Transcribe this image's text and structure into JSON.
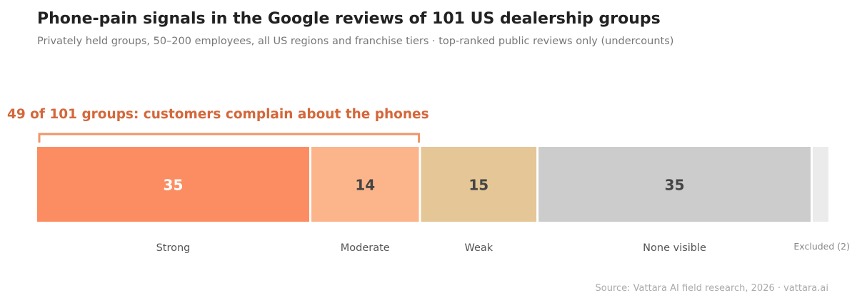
{
  "header": {
    "title": "Phone-pain signals in the Google reviews of 101 US dealership groups",
    "subtitle": "Privately held groups, 50–200 employees, all US regions and franchise tiers · top-ranked public reviews only (undercounts)"
  },
  "annotation": {
    "callout": "49 of 101 groups: customers complain about the phones",
    "bracket_spans": [
      "Strong",
      "Moderate"
    ],
    "color": "#f0956a"
  },
  "footer": {
    "source": "Source: Vattara AI field research, 2026 · vattara.ai"
  },
  "chart_data": {
    "type": "bar",
    "orientation": "horizontal-stacked",
    "categories": [
      "Strong",
      "Moderate",
      "Weak",
      "None visible",
      "Excluded (2)"
    ],
    "values": [
      35,
      14,
      15,
      35,
      2
    ],
    "data_labels": [
      "35",
      "14",
      "15",
      "35",
      ""
    ],
    "total": 101,
    "colors": [
      "#fc8d62",
      "#fcb58a",
      "#e5c697",
      "#cccccc",
      "#ebebeb"
    ],
    "label_colors": [
      "#ffffff",
      "#444444",
      "#444444",
      "#444444",
      "#444444"
    ]
  }
}
